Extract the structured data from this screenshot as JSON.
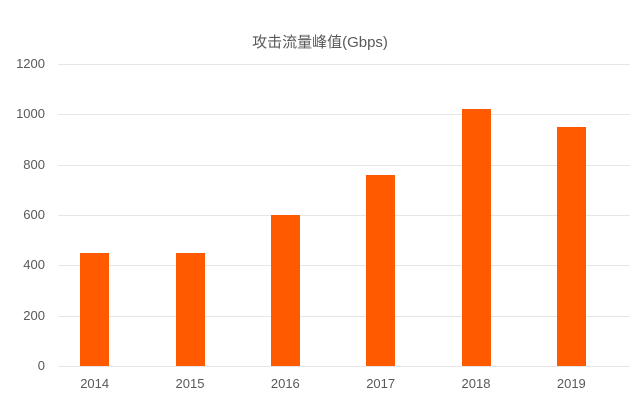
{
  "chart_data": {
    "type": "bar",
    "title": "攻击流量峰值(Gbps)",
    "xlabel": "",
    "ylabel": "",
    "categories": [
      "2014",
      "2015",
      "2016",
      "2017",
      "2018",
      "2019"
    ],
    "values": [
      450,
      450,
      600,
      760,
      1020,
      950
    ],
    "ylim": [
      0,
      1200
    ],
    "yticks": [
      0,
      200,
      400,
      600,
      800,
      1000,
      1200
    ],
    "grid": true,
    "legend": null,
    "bar_color": "#ff5a00"
  }
}
